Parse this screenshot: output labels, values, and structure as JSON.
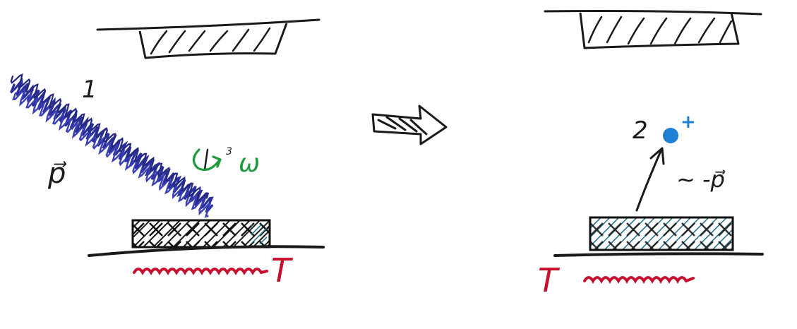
{
  "left_panel": {
    "photon_label": "1",
    "momentum_label": "p⃗",
    "rotation_label": "ω",
    "rotation_sup": "3",
    "temperature_label": "T"
  },
  "arrow_between_panels": "transition-arrow",
  "right_panel": {
    "ion_label": "2",
    "ion_charge": "+",
    "recoil_label": "~ -p⃗",
    "temperature_label": "T"
  },
  "colors": {
    "ink": "#1a1a1a",
    "photon": "#2b2f9a",
    "rotation": "#1e9a3c",
    "thermal": "#c8102e",
    "ion": "#1f7fd0",
    "hatch_teal": "#1d6f8a"
  }
}
